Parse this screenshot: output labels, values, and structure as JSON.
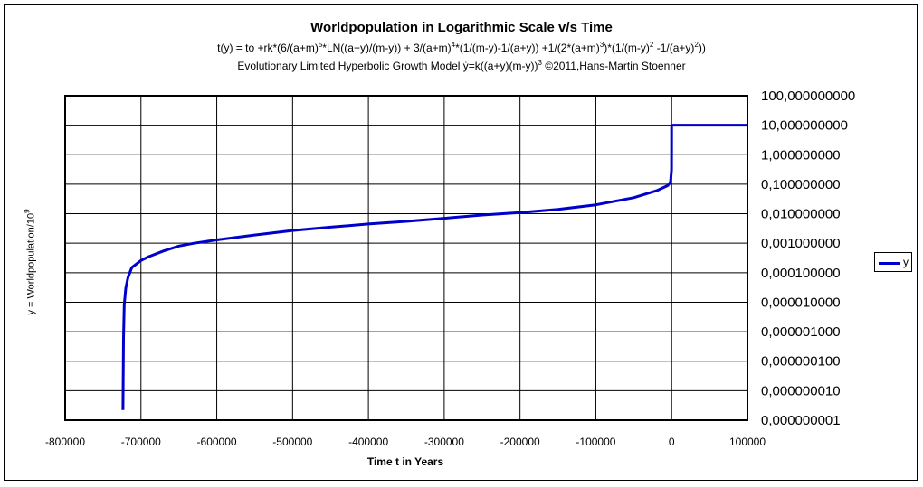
{
  "chart_data": {
    "type": "line",
    "title": "Worldpopulation in Logarithmic Scale v/s Time",
    "subtitle_formula": {
      "p1": "t(y) = to +rk*(6/(a+m)",
      "s1": "5",
      "p2": "*LN((a+y)/(m-y)) + 3/(a+m)",
      "s2": "4",
      "p3": "*(1/(m-y)-1/(a+y)) +1/(2*(a+m)",
      "s3": "3",
      "p4": ")*(1/(m-y)",
      "s4": "2",
      "p5": " -1/(a+y)",
      "s5": "2",
      "p6": "))"
    },
    "subtitle_model": {
      "p1": "Evolutionary Limited Hyperbolic Growth Model ẏ=k((a+y)(m-y))",
      "s1": "3",
      "p2": " ©2011,Hans-Martin Stoenner"
    },
    "xlabel": "Time t in Years",
    "ylabel": {
      "text": "y = Worldpopulation/10",
      "sup": "9"
    },
    "x_scale": "linear",
    "y_scale": "log",
    "xlim": [
      -800000,
      100000
    ],
    "ylim": [
      1e-09,
      100
    ],
    "grid": true,
    "legend_position": "right",
    "x_ticks": [
      "-800000",
      "-700000",
      "-600000",
      "-500000",
      "-400000",
      "-300000",
      "-200000",
      "-100000",
      "0",
      "100000"
    ],
    "x_tick_values": [
      -800000,
      -700000,
      -600000,
      -500000,
      -400000,
      -300000,
      -200000,
      -100000,
      0,
      100000
    ],
    "y_ticks": [
      "100,000000000",
      "10,000000000",
      "1,000000000",
      "0,100000000",
      "0,010000000",
      "0,001000000",
      "0,000100000",
      "0,000010000",
      "0,000001000",
      "0,000000100",
      "0,000000010",
      "0,000000001"
    ],
    "y_tick_values": [
      100,
      10,
      1,
      0.1,
      0.01,
      0.001,
      0.0001,
      1e-05,
      1e-06,
      1e-07,
      1e-08,
      1e-09
    ],
    "series": [
      {
        "name": "y",
        "color": "#0000cc",
        "x": [
          -723700,
          -723400,
          -723000,
          -722000,
          -720000,
          -717000,
          -712000,
          -700000,
          -690000,
          -670000,
          -650000,
          -630000,
          -600000,
          -550000,
          -500000,
          -450000,
          -400000,
          -350000,
          -300000,
          -250000,
          -200000,
          -150000,
          -100000,
          -50000,
          -20000,
          -5000,
          -1500,
          -200,
          0,
          1000,
          50000,
          100000
        ],
        "y": [
          2.2e-09,
          4e-08,
          6e-07,
          8e-06,
          3e-05,
          7e-05,
          0.00015,
          0.00026,
          0.00035,
          0.00055,
          0.0008,
          0.001,
          0.0013,
          0.0019,
          0.0027,
          0.0035,
          0.0045,
          0.0055,
          0.007,
          0.009,
          0.011,
          0.014,
          0.02,
          0.035,
          0.06,
          0.09,
          0.12,
          0.3,
          10,
          10,
          10,
          10
        ]
      }
    ]
  }
}
